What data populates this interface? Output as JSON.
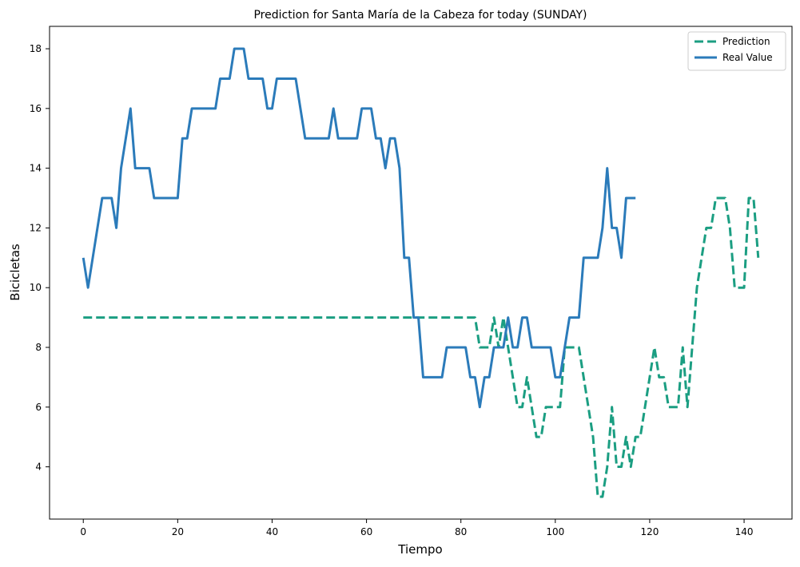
{
  "chart_data": {
    "type": "line",
    "title": "Prediction for Santa María de la Cabeza for today (SUNDAY)",
    "x_label": "Tiempo",
    "y_label": "Bicicletas",
    "xlim": [
      -7.15,
      150.15
    ],
    "xticks": [
      0,
      20,
      40,
      60,
      80,
      100,
      120,
      140
    ],
    "ylim": [
      2.25,
      18.75
    ],
    "yticks": [
      4,
      6,
      8,
      10,
      12,
      14,
      16,
      18
    ],
    "legend": "upper right",
    "series": [
      {
        "name": "Prediction",
        "color": "#1b9e82",
        "dash": true,
        "values": [
          9,
          9,
          9,
          9,
          9,
          9,
          9,
          9,
          9,
          9,
          9,
          9,
          9,
          9,
          9,
          9,
          9,
          9,
          9,
          9,
          9,
          9,
          9,
          9,
          9,
          9,
          9,
          9,
          9,
          9,
          9,
          9,
          9,
          9,
          9,
          9,
          9,
          9,
          9,
          9,
          9,
          9,
          9,
          9,
          9,
          9,
          9,
          9,
          9,
          9,
          9,
          9,
          9,
          9,
          9,
          9,
          9,
          9,
          9,
          9,
          9,
          9,
          9,
          9,
          9,
          9,
          9,
          9,
          9,
          9,
          9,
          9,
          9,
          9,
          9,
          9,
          9,
          9,
          9,
          9,
          9,
          9,
          9,
          9,
          8,
          8,
          8,
          9,
          8,
          9,
          8,
          7,
          6,
          6,
          7,
          6,
          5,
          5,
          6,
          6,
          6,
          6,
          8,
          8,
          8,
          8,
          7,
          6,
          5,
          3,
          3,
          4,
          6,
          4,
          4,
          5,
          4,
          5,
          5,
          6,
          7,
          8,
          7,
          7,
          6,
          6,
          6,
          8,
          6,
          8,
          10,
          11,
          12,
          12,
          13,
          13,
          13,
          12,
          10,
          10,
          10,
          13,
          13,
          11
        ]
      },
      {
        "name": "Real Value",
        "color": "#2b7bba",
        "dash": false,
        "values": [
          11,
          10,
          11,
          12,
          13,
          13,
          13,
          12,
          14,
          15,
          16,
          14,
          14,
          14,
          14,
          13,
          13,
          13,
          13,
          13,
          13,
          15,
          15,
          16,
          16,
          16,
          16,
          16,
          16,
          17,
          17,
          17,
          18,
          18,
          18,
          17,
          17,
          17,
          17,
          16,
          16,
          17,
          17,
          17,
          17,
          17,
          16,
          15,
          15,
          15,
          15,
          15,
          15,
          16,
          15,
          15,
          15,
          15,
          15,
          16,
          16,
          16,
          15,
          15,
          14,
          15,
          15,
          14,
          11,
          11,
          9,
          9,
          7,
          7,
          7,
          7,
          7,
          8,
          8,
          8,
          8,
          8,
          7,
          7,
          6,
          7,
          7,
          8,
          8,
          8,
          9,
          8,
          8,
          9,
          9,
          8,
          8,
          8,
          8,
          8,
          7,
          7,
          8,
          9,
          9,
          9,
          11,
          11,
          11,
          11,
          12,
          14,
          12,
          12,
          11,
          13,
          13,
          13
        ]
      }
    ]
  }
}
